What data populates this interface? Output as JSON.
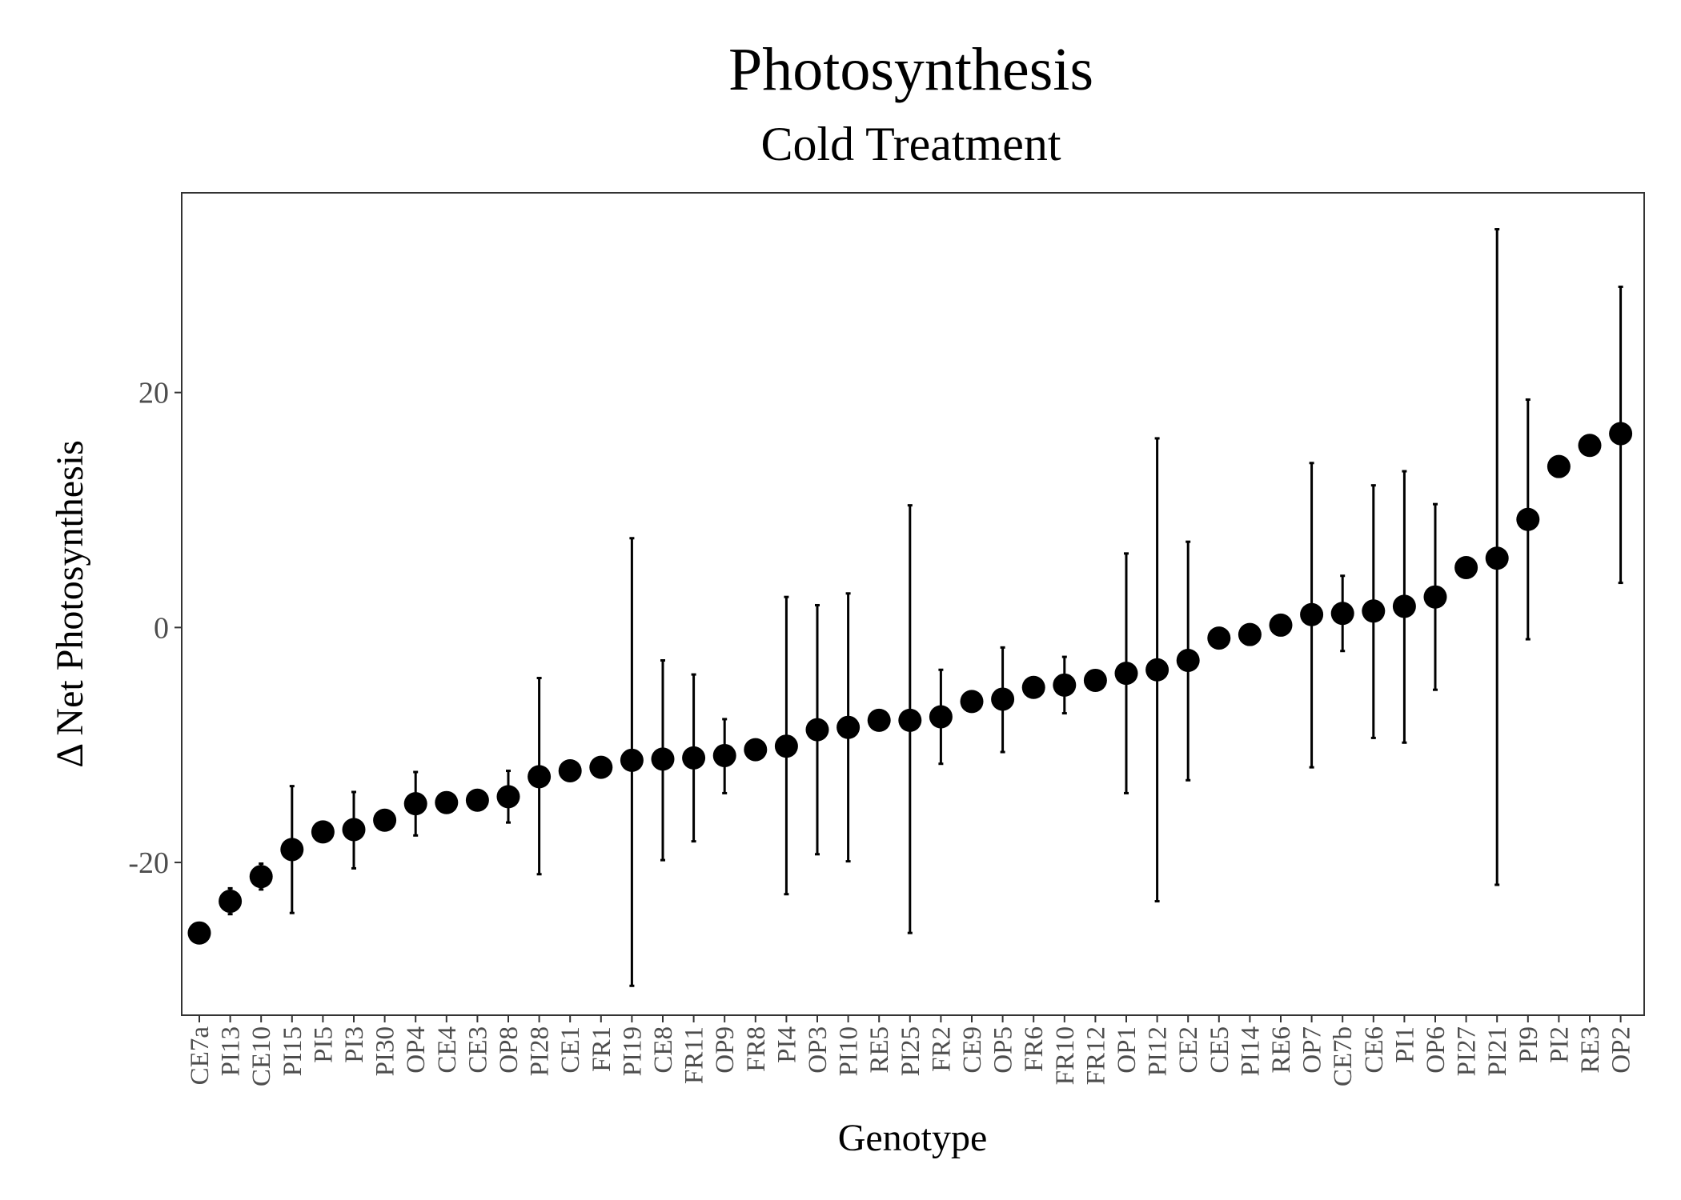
{
  "chart_data": {
    "type": "scatter",
    "title": "Photosynthesis",
    "subtitle": "Cold Treatment",
    "xlabel": "Genotype",
    "ylabel": "Δ Net Photosynthesis",
    "ylim": [
      -33,
      37
    ],
    "yticks": [
      -20,
      0,
      20
    ],
    "grid": false,
    "legend": "none",
    "point_color": "#000000",
    "errorbar_color": "#000000",
    "panel_border_color": "#333333",
    "categories": [
      "CE7a",
      "PI13",
      "CE10",
      "PI15",
      "PI5",
      "PI3",
      "PI30",
      "OP4",
      "CE4",
      "CE3",
      "OP8",
      "PI28",
      "CE1",
      "FR1",
      "PI19",
      "CE8",
      "FR11",
      "OP9",
      "FR8",
      "PI4",
      "OP3",
      "PI10",
      "RE5",
      "PI25",
      "FR2",
      "CE9",
      "OP5",
      "FR6",
      "FR10",
      "FR12",
      "OP1",
      "PI12",
      "CE2",
      "CE5",
      "PI14",
      "RE6",
      "OP7",
      "CE7b",
      "CE6",
      "PI1",
      "OP6",
      "PI27",
      "PI21",
      "PI9",
      "PI2",
      "RE3",
      "OP2"
    ],
    "values": [
      -26.0,
      -23.3,
      -21.2,
      -18.9,
      -17.4,
      -17.2,
      -16.4,
      -15.0,
      -14.9,
      -14.7,
      -14.4,
      -12.7,
      -12.2,
      -11.9,
      -11.3,
      -11.2,
      -11.1,
      -10.9,
      -10.4,
      -10.1,
      -8.7,
      -8.5,
      -7.9,
      -7.9,
      -7.6,
      -6.3,
      -6.1,
      -5.1,
      -4.9,
      -4.5,
      -3.9,
      -3.6,
      -2.8,
      -0.9,
      -0.6,
      0.2,
      1.1,
      1.2,
      1.4,
      1.8,
      2.6,
      5.1,
      5.9,
      9.2,
      13.7,
      15.5,
      16.5
    ],
    "error_lower": [
      null,
      -24.4,
      -22.3,
      -24.3,
      null,
      -20.5,
      null,
      -17.7,
      null,
      null,
      -16.6,
      -21.0,
      null,
      null,
      -30.5,
      -19.8,
      -18.2,
      -14.1,
      null,
      -22.7,
      -19.3,
      -19.9,
      null,
      -26.0,
      -11.6,
      null,
      -10.6,
      null,
      -7.3,
      null,
      -14.1,
      -23.3,
      -13.0,
      null,
      null,
      null,
      -11.9,
      -2.0,
      -9.4,
      -9.8,
      -5.3,
      null,
      -21.9,
      -1.0,
      null,
      null,
      3.8
    ],
    "error_upper": [
      null,
      -22.2,
      -20.1,
      -13.5,
      null,
      -14.0,
      null,
      -12.3,
      null,
      null,
      -12.2,
      -4.3,
      null,
      null,
      7.6,
      -2.8,
      -4.0,
      -7.8,
      null,
      2.6,
      1.9,
      2.9,
      null,
      10.4,
      -3.6,
      null,
      -1.7,
      null,
      -2.5,
      null,
      6.3,
      16.1,
      7.3,
      null,
      null,
      null,
      14.0,
      4.4,
      12.1,
      13.3,
      10.5,
      null,
      33.9,
      19.4,
      null,
      null,
      29.0
    ]
  }
}
